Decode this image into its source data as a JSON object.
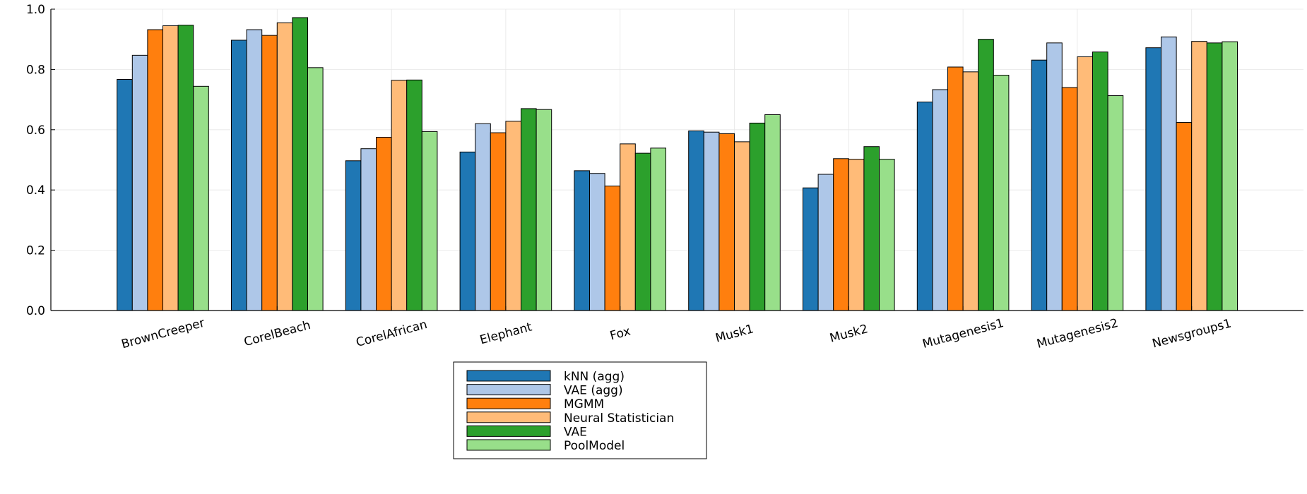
{
  "chart_data": {
    "type": "bar",
    "title": "",
    "xlabel": "",
    "ylabel": "",
    "ylim": [
      0,
      1.0
    ],
    "yticks": [
      "0.0",
      "0.2",
      "0.4",
      "0.6",
      "0.8",
      "1.0"
    ],
    "grid": true,
    "legend_position": "bottom-center",
    "categories": [
      "BrownCreeper",
      "CorelBeach",
      "CorelAfrican",
      "Elephant",
      "Fox",
      "Musk1",
      "Musk2",
      "Mutagenesis1",
      "Mutagenesis2",
      "Newsgroups1"
    ],
    "series": [
      {
        "name": "kNN (agg)",
        "color": "#1f77b4",
        "values": [
          0.767,
          0.897,
          0.497,
          0.526,
          0.464,
          0.596,
          0.407,
          0.692,
          0.831,
          0.872
        ]
      },
      {
        "name": "VAE (agg)",
        "color": "#aec7e8",
        "values": [
          0.847,
          0.932,
          0.537,
          0.62,
          0.455,
          0.592,
          0.452,
          0.733,
          0.888,
          0.908
        ]
      },
      {
        "name": "MGMM",
        "color": "#ff7f0e",
        "values": [
          0.932,
          0.913,
          0.575,
          0.59,
          0.413,
          0.587,
          0.504,
          0.808,
          0.74,
          0.624
        ]
      },
      {
        "name": "Neural Statistician",
        "color": "#ffbb78",
        "values": [
          0.945,
          0.955,
          0.764,
          0.628,
          0.553,
          0.56,
          0.502,
          0.792,
          0.842,
          0.893
        ]
      },
      {
        "name": "VAE",
        "color": "#2ca02c",
        "values": [
          0.947,
          0.972,
          0.765,
          0.67,
          0.522,
          0.622,
          0.544,
          0.9,
          0.858,
          0.888
        ]
      },
      {
        "name": "PoolModel",
        "color": "#98df8a",
        "values": [
          0.744,
          0.806,
          0.594,
          0.667,
          0.539,
          0.65,
          0.502,
          0.781,
          0.713,
          0.892
        ]
      }
    ]
  }
}
